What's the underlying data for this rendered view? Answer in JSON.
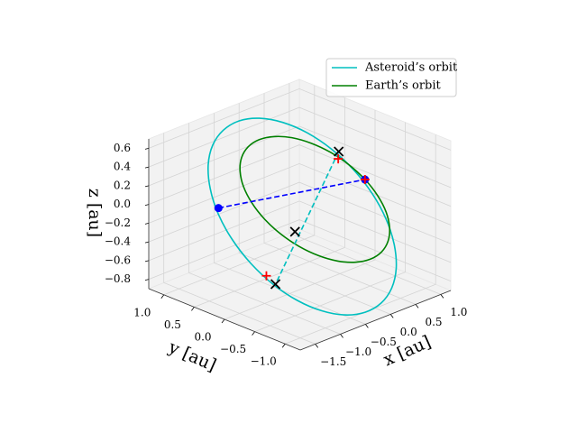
{
  "chart_data": {
    "type": "line3d",
    "xlabel": "x [au]",
    "ylabel": "y [au]",
    "zlabel": "z [au]",
    "xlim": [
      -1.8,
      1.2
    ],
    "ylim": [
      -1.25,
      1.25
    ],
    "zlim": [
      -0.9,
      0.7
    ],
    "xticks": [
      {
        "value": -1.5,
        "label": "−1.5"
      },
      {
        "value": -1.0,
        "label": "−1.0"
      },
      {
        "value": -0.5,
        "label": "−0.5"
      },
      {
        "value": 0.0,
        "label": "0.0"
      },
      {
        "value": 0.5,
        "label": "0.5"
      },
      {
        "value": 1.0,
        "label": "1.0"
      }
    ],
    "yticks": [
      {
        "value": -1.0,
        "label": "−1.0"
      },
      {
        "value": -0.5,
        "label": "−0.5"
      },
      {
        "value": 0.0,
        "label": "0.0"
      },
      {
        "value": 0.5,
        "label": "0.5"
      },
      {
        "value": 1.0,
        "label": "1.0"
      }
    ],
    "zticks": [
      {
        "value": -0.8,
        "label": "−0.8"
      },
      {
        "value": -0.6,
        "label": "−0.6"
      },
      {
        "value": -0.4,
        "label": "−0.4"
      },
      {
        "value": -0.2,
        "label": "−0.2"
      },
      {
        "value": 0.0,
        "label": "0.0"
      },
      {
        "value": 0.2,
        "label": "0.2"
      },
      {
        "value": 0.4,
        "label": "0.4"
      },
      {
        "value": 0.6,
        "label": "0.6"
      }
    ],
    "grid": true,
    "legend": "upper right",
    "series": [
      {
        "name": "Asteroid’s orbit",
        "color": "#00bfbf",
        "closed": true,
        "x": [
          -0.128,
          0.084,
          0.173,
          0.334,
          0.52,
          0.632,
          0.662,
          0.61,
          0.478,
          0.276,
          0.017,
          -0.281,
          -0.597,
          -0.911,
          -1.201,
          -1.446,
          -1.632,
          -1.744,
          -1.774,
          -1.722,
          -1.59,
          -1.311,
          -0.849,
          -0.445
        ],
        "y": [
          -1.2,
          -1.2,
          -1.2,
          -1.034,
          -0.747,
          -0.425,
          -0.091,
          0.232,
          0.522,
          0.759,
          0.927,
          1.015,
          1.016,
          0.931,
          0.765,
          0.529,
          0.242,
          -0.081,
          -0.415,
          -0.737,
          -1.027,
          -1.2,
          -1.2,
          -1.2
        ],
        "z": [
          -0.766,
          -0.65,
          -0.456,
          -0.283,
          -0.127,
          0.038,
          0.2,
          0.348,
          0.473,
          0.565,
          0.62,
          0.632,
          0.6,
          0.528,
          0.42,
          0.283,
          0.127,
          -0.038,
          -0.2,
          -0.348,
          -0.473,
          -0.598,
          -0.74,
          -0.797
        ]
      },
      {
        "name": "Earth’s orbit",
        "color": "#008000",
        "closed": true,
        "x": [
          1,
          0.966,
          0.866,
          0.707,
          0.5,
          0.259,
          0,
          -0.259,
          -0.5,
          -0.707,
          -0.866,
          -0.966,
          -1,
          -0.966,
          -0.866,
          -0.707,
          -0.5,
          -0.259,
          0,
          0.259,
          0.5,
          0.707,
          0.866,
          0.966
        ],
        "y": [
          0,
          0.237,
          0.459,
          0.648,
          0.794,
          0.886,
          0.917,
          0.886,
          0.794,
          0.648,
          0.459,
          0.237,
          0,
          -0.237,
          -0.459,
          -0.648,
          -0.794,
          -0.886,
          -0.917,
          -0.886,
          -0.794,
          -0.648,
          -0.459,
          -0.237
        ],
        "z": [
          0,
          0.103,
          0.199,
          0.281,
          0.345,
          0.384,
          0.398,
          0.384,
          0.345,
          0.281,
          0.199,
          0.103,
          0,
          -0.103,
          -0.199,
          -0.281,
          -0.345,
          -0.384,
          -0.398,
          -0.384,
          -0.345,
          -0.281,
          -0.199,
          -0.103
        ]
      }
    ],
    "segments": [
      {
        "color": "#0000ff",
        "style": "dashed",
        "x": [
          -1.63,
          1
        ],
        "y": [
          0.24,
          0
        ],
        "z": [
          0.19,
          0
        ]
      },
      {
        "color": "#00bfbf",
        "style": "dashed",
        "x": [
          0.5,
          -1.11
        ],
        "y": [
          0.02,
          -0.27
        ],
        "z": [
          0.4,
          -0.6
        ]
      }
    ],
    "markers": [
      {
        "marker": "o",
        "color": "#0000ff",
        "x": -1.63,
        "y": 0.24,
        "z": 0.19
      },
      {
        "marker": "o",
        "color": "#0000ff",
        "x": 1,
        "y": 0,
        "z": 0
      },
      {
        "marker": "+",
        "color": "#ff0000",
        "x": 1,
        "y": 0,
        "z": 0
      },
      {
        "marker": "+",
        "color": "#ff0000",
        "x": 0.43,
        "y": -0.03,
        "z": 0.35
      },
      {
        "marker": "+",
        "color": "#ff0000",
        "x": -1.11,
        "y": -0.12,
        "z": -0.55
      },
      {
        "marker": "x",
        "color": "#000000",
        "x": 0.5,
        "y": 0.02,
        "z": 0.4
      },
      {
        "marker": "x",
        "color": "#000000",
        "x": -0.54,
        "y": -0.12,
        "z": -0.2
      },
      {
        "marker": "x",
        "color": "#000000",
        "x": -1.11,
        "y": -0.27,
        "z": -0.6
      }
    ]
  }
}
